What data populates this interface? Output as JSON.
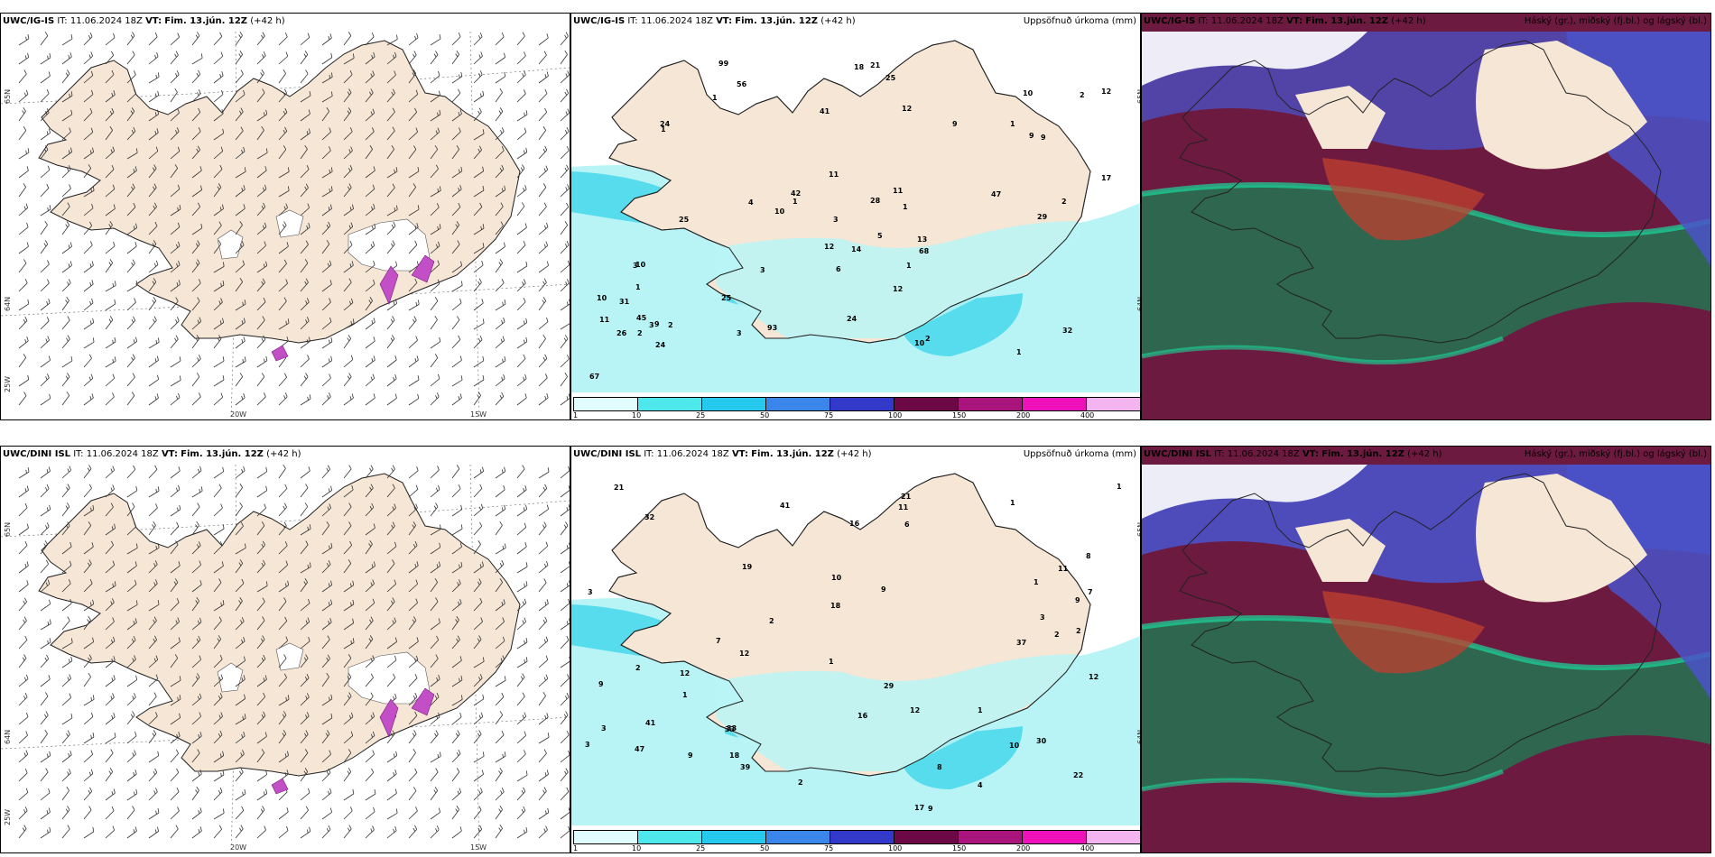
{
  "rows": [
    {
      "model": "UWC/IG-IS",
      "it_label": "IT:",
      "it_value": "11.06.2024 18Z",
      "vt_label": "VT:",
      "vt_value": "Fim. 13.jún. 12Z",
      "lead": "(+42 h)",
      "precip_values": [
        "1",
        "2",
        "1",
        "1",
        "1",
        "1",
        "1",
        "3",
        "3",
        "2",
        "1",
        "56",
        "24",
        "12",
        "93",
        "25",
        "24",
        "9",
        "21",
        "10",
        "10",
        "42",
        "47",
        "11",
        "12",
        "32",
        "25",
        "26",
        "10",
        "10",
        "5",
        "6",
        "24",
        "99",
        "12",
        "12",
        "14",
        "67",
        "3",
        "68",
        "45",
        "41",
        "17",
        "25",
        "29",
        "9",
        "11",
        "11",
        "13",
        "2",
        "4",
        "1",
        "9",
        "10",
        "9",
        "31",
        "18",
        "28",
        "2",
        "3",
        "2",
        "3"
      ],
      "lat_lon_labels": [
        "65N",
        "64N",
        "25W",
        "20W",
        "15W"
      ]
    },
    {
      "model": "UWC/DINI ISL",
      "it_label": "IT:",
      "it_value": "11.06.2024 18Z",
      "vt_label": "VT:",
      "vt_value": "Fim. 13.jún. 12Z",
      "lead": "(+42 h)",
      "precip_values": [
        "1",
        "1",
        "3",
        "2",
        "2",
        "1",
        "41",
        "18",
        "10",
        "47",
        "16",
        "12",
        "17",
        "11",
        "8",
        "9",
        "9",
        "7",
        "9",
        "7",
        "33",
        "37",
        "12",
        "21",
        "3",
        "19",
        "12",
        "32",
        "39",
        "18",
        "22",
        "12",
        "41",
        "6",
        "11",
        "29",
        "16",
        "9",
        "9",
        "8",
        "30",
        "21",
        "33",
        "10",
        "2",
        "1",
        "1",
        "3",
        "2",
        "3",
        "4",
        "1",
        "2"
      ],
      "lat_lon_labels": [
        "65N",
        "64N",
        "25W",
        "20W",
        "15W"
      ]
    }
  ],
  "precip_title": "Uppsöfnuð úrkoma (mm)",
  "cloud_title": "Háský (gr.), miðský (fj.bl.) og lágský (bl.)",
  "colorbar": {
    "ticks": [
      "1",
      "10",
      "25",
      "50",
      "75",
      "100",
      "150",
      "200",
      "400"
    ],
    "colors": [
      "#e0fcfc",
      "#4ee8ec",
      "#26c8ee",
      "#3a86ea",
      "#3238c8",
      "#6c0846",
      "#a8147c",
      "#ee10b8",
      "#f4b4f0"
    ]
  },
  "colors": {
    "land": "#f5e6d6",
    "ice": "#ffffff",
    "sea": "#ffffff",
    "precip_light": "#b8f4f6",
    "precip_mid": "#56dcec",
    "low_cloud": "#2f6650",
    "mid_cloud": "#6d1a40",
    "high_cloud": "#4a52c8"
  }
}
